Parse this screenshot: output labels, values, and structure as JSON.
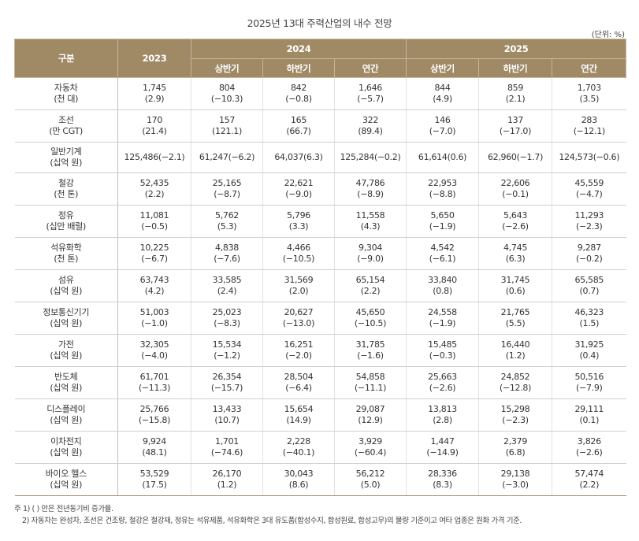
{
  "title": "2025년 13대 주력산업의 내수 전망",
  "unit": "(단위: %)",
  "header": {
    "category": "구분",
    "y2023": "2023",
    "y2024": "2024",
    "y2025": "2025",
    "sub": [
      "상반기",
      "하반기",
      "연간",
      "상반기",
      "하반기",
      "연간"
    ]
  },
  "rows": [
    {
      "name": "자동차",
      "unit": "(천 대)",
      "v": [
        [
          "1,745",
          "(2.9)"
        ],
        [
          "804",
          "(−10.3)"
        ],
        [
          "842",
          "(−0.8)"
        ],
        [
          "1,646",
          "(−5.7)"
        ],
        [
          "844",
          "(4.9)"
        ],
        [
          "859",
          "(2.1)"
        ],
        [
          "1,703",
          "(3.5)"
        ]
      ]
    },
    {
      "name": "조선",
      "unit": "(만 CGT)",
      "v": [
        [
          "170",
          "(21.4)"
        ],
        [
          "157",
          "(121.1)"
        ],
        [
          "165",
          "(66.7)"
        ],
        [
          "322",
          "(89.4)"
        ],
        [
          "146",
          "(−7.0)"
        ],
        [
          "137",
          "(−17.0)"
        ],
        [
          "283",
          "(−12.1)"
        ]
      ]
    },
    {
      "name": "일반기계",
      "unit": "(십억 원)",
      "single": true,
      "v": [
        [
          "125,486(−2.1)"
        ],
        [
          "61,247(−6.2)"
        ],
        [
          "64,037(6.3)"
        ],
        [
          "125,284(−0.2)"
        ],
        [
          "61,614(0.6)"
        ],
        [
          "62,960(−1.7)"
        ],
        [
          "124,573(−0.6)"
        ]
      ]
    },
    {
      "name": "철강",
      "unit": "(천 톤)",
      "v": [
        [
          "52,435",
          "(2.2)"
        ],
        [
          "25,165",
          "(−8.7)"
        ],
        [
          "22,621",
          "(−9.0)"
        ],
        [
          "47,786",
          "(−8.9)"
        ],
        [
          "22,953",
          "(−8.8)"
        ],
        [
          "22,606",
          "(−0.1)"
        ],
        [
          "45,559",
          "(−4.7)"
        ]
      ]
    },
    {
      "name": "정유",
      "unit": "(십만 배럴)",
      "v": [
        [
          "11,081",
          "(−0.5)"
        ],
        [
          "5,762",
          "(5.3)"
        ],
        [
          "5,796",
          "(3.3)"
        ],
        [
          "11,558",
          "(4.3)"
        ],
        [
          "5,650",
          "(−1.9)"
        ],
        [
          "5,643",
          "(−2.6)"
        ],
        [
          "11,293",
          "(−2.3)"
        ]
      ]
    },
    {
      "name": "석유화학",
      "unit": "(천 톤)",
      "v": [
        [
          "10,225",
          "(−6.7)"
        ],
        [
          "4,838",
          "(−7.6)"
        ],
        [
          "4,466",
          "(−10.5)"
        ],
        [
          "9,304",
          "(−9.0)"
        ],
        [
          "4,542",
          "(−6.1)"
        ],
        [
          "4,745",
          "(6.3)"
        ],
        [
          "9,287",
          "(−0.2)"
        ]
      ]
    },
    {
      "name": "섬유",
      "unit": "(십억 원)",
      "v": [
        [
          "63,743",
          "(4.2)"
        ],
        [
          "33,585",
          "(2.4)"
        ],
        [
          "31,569",
          "(2.0)"
        ],
        [
          "65,154",
          "(2.2)"
        ],
        [
          "33,840",
          "(0.8)"
        ],
        [
          "31,745",
          "(0.6)"
        ],
        [
          "65,585",
          "(0.7)"
        ]
      ]
    },
    {
      "name": "정보통신기기",
      "unit": "(십억 원)",
      "v": [
        [
          "51,003",
          "(−1.0)"
        ],
        [
          "25,023",
          "(−8.3)"
        ],
        [
          "20,627",
          "(−13.0)"
        ],
        [
          "45,650",
          "(−10.5)"
        ],
        [
          "24,558",
          "(−1.9)"
        ],
        [
          "21,765",
          "(5.5)"
        ],
        [
          "46,323",
          "(1.5)"
        ]
      ]
    },
    {
      "name": "가전",
      "unit": "(십억 원)",
      "v": [
        [
          "32,305",
          "(−4.0)"
        ],
        [
          "15,534",
          "(−1.2)"
        ],
        [
          "16,251",
          "(−2.0)"
        ],
        [
          "31,785",
          "(−1.6)"
        ],
        [
          "15,485",
          "(−0.3)"
        ],
        [
          "16,440",
          "(1.2)"
        ],
        [
          "31,925",
          "(0.4)"
        ]
      ]
    },
    {
      "name": "반도체",
      "unit": "(십억 원)",
      "v": [
        [
          "61,701",
          "(−11.3)"
        ],
        [
          "26,354",
          "(−15.7)"
        ],
        [
          "28,504",
          "(−6.4)"
        ],
        [
          "54,858",
          "(−11.1)"
        ],
        [
          "25,663",
          "(−2.6)"
        ],
        [
          "24,852",
          "(−12.8)"
        ],
        [
          "50,516",
          "(−7.9)"
        ]
      ]
    },
    {
      "name": "디스플레이",
      "unit": "(십억 원)",
      "v": [
        [
          "25,766",
          "(−15.8)"
        ],
        [
          "13,433",
          "(10.7)"
        ],
        [
          "15,654",
          "(14.9)"
        ],
        [
          "29,087",
          "(12.9)"
        ],
        [
          "13,813",
          "(2.8)"
        ],
        [
          "15,298",
          "(−2.3)"
        ],
        [
          "29,111",
          "(0.1)"
        ]
      ]
    },
    {
      "name": "이차전지",
      "unit": "(십억 원)",
      "v": [
        [
          "9,924",
          "(48.1)"
        ],
        [
          "1,701",
          "(−74.6)"
        ],
        [
          "2,228",
          "(−40.1)"
        ],
        [
          "3,929",
          "(−60.4)"
        ],
        [
          "1,447",
          "(−14.9)"
        ],
        [
          "2,379",
          "(6.8)"
        ],
        [
          "3,826",
          "(−2.6)"
        ]
      ]
    },
    {
      "name": "바이오 헬스",
      "unit": "(십억 원)",
      "v": [
        [
          "53,529",
          "(17.5)"
        ],
        [
          "26,170",
          "(1.2)"
        ],
        [
          "30,043",
          "(8.6)"
        ],
        [
          "56,212",
          "(5.0)"
        ],
        [
          "28,336",
          "(8.3)"
        ],
        [
          "29,138",
          "(−3.0)"
        ],
        [
          "57,474",
          "(2.2)"
        ]
      ]
    }
  ],
  "notes": [
    "주 1) ( ) 안은 전년동기비 증가율.",
    "2) 자동차는 완성차, 조선은 건조량, 철강은 철강재, 정유는 석유제품, 석유화학은 3대 유도품(합성수지, 합성원료, 합성고무)의 물량 기준이고 여타 업종은 원화 가격 기준."
  ],
  "colors": {
    "header_bg": "#a08a66",
    "header_text": "#ffffff"
  }
}
